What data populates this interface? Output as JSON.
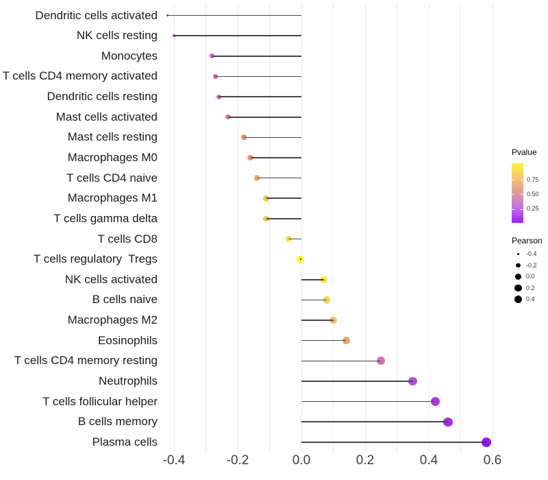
{
  "chart_data": {
    "type": "lollipop",
    "title": "",
    "xlabel": "",
    "ylabel": "",
    "x_range": [
      -0.435,
      0.625
    ],
    "x_tick_values": [
      -0.4,
      -0.2,
      0.0,
      0.2,
      0.4,
      0.6
    ],
    "x_tick_labels": [
      "-0.4",
      "-0.2",
      "0.0",
      "0.2",
      "0.4",
      "0.6"
    ],
    "grid_values": [
      -0.4,
      -0.3,
      -0.2,
      -0.1,
      0.0,
      0.1,
      0.2,
      0.3,
      0.4,
      0.5,
      0.6
    ],
    "rows": [
      {
        "label": "Dendritic cells activated",
        "pearson": -0.42,
        "color": "#951adf"
      },
      {
        "label": "NK cells resting",
        "pearson": -0.4,
        "color": "#a62ce2"
      },
      {
        "label": "Monocytes",
        "pearson": -0.28,
        "color": "#cb66b3"
      },
      {
        "label": "T cells CD4 memory activated",
        "pearson": -0.27,
        "color": "#cd69b1"
      },
      {
        "label": "Dendritic cells resting",
        "pearson": -0.26,
        "color": "#cf6cae"
      },
      {
        "label": "Mast cells activated",
        "pearson": -0.23,
        "color": "#d77a9f"
      },
      {
        "label": "Mast cells resting",
        "pearson": -0.18,
        "color": "#e08f75"
      },
      {
        "label": "Macrophages M0",
        "pearson": -0.16,
        "color": "#e59a6d"
      },
      {
        "label": "T cells CD4 naive",
        "pearson": -0.14,
        "color": "#ebad68"
      },
      {
        "label": "Macrophages M1",
        "pearson": -0.11,
        "color": "#f1c65e"
      },
      {
        "label": "T cells gamma delta",
        "pearson": -0.11,
        "color": "#f1c85d"
      },
      {
        "label": "T cells CD8",
        "pearson": -0.04,
        "color": "#f7e04a"
      },
      {
        "label": "T cells regulatory  Tregs",
        "pearson": -0.005,
        "color": "#fdf834"
      },
      {
        "label": "NK cells activated",
        "pearson": 0.07,
        "color": "#f6e04b"
      },
      {
        "label": "B cells naive",
        "pearson": 0.08,
        "color": "#f0d155"
      },
      {
        "label": "Macrophages M2",
        "pearson": 0.1,
        "color": "#edc266"
      },
      {
        "label": "Eosinophils",
        "pearson": 0.14,
        "color": "#e2a379"
      },
      {
        "label": "T cells CD4 memory resting",
        "pearson": 0.25,
        "color": "#d073a8"
      },
      {
        "label": "Neutrophils",
        "pearson": 0.35,
        "color": "#bb4cd4"
      },
      {
        "label": "T cells follicular helper",
        "pearson": 0.42,
        "color": "#ad36e0"
      },
      {
        "label": "B cells memory",
        "pearson": 0.46,
        "color": "#a62ce5"
      },
      {
        "label": "Plasma cells",
        "pearson": 0.58,
        "color": "#9316f2"
      }
    ],
    "legend": {
      "position": "right",
      "pvalue": {
        "title": "Pvalue",
        "tick_labels": [
          "0.75",
          "0.50",
          "0.25"
        ],
        "tick_positions": [
          0.28,
          0.52,
          0.77
        ],
        "gradient_top_to_bottom": [
          "#fdf33b",
          "#f6c36c",
          "#df9b9b",
          "#c26fe4",
          "#a21ef5"
        ]
      },
      "pearson": {
        "title": "Pearson",
        "entries": [
          {
            "label": "-0.4",
            "diameter": 3.4
          },
          {
            "label": "-0.2",
            "diameter": 6.6
          },
          {
            "label": "0.0",
            "diameter": 9.0
          },
          {
            "label": "0.2",
            "diameter": 10.4
          },
          {
            "label": "0.4",
            "diameter": 11.6
          }
        ]
      }
    },
    "colors": {
      "stem": "#454545",
      "grid": "#eaeaea",
      "axis_text": "#3d3d3d",
      "label_text": "#1a1a1a",
      "legend_dot": "#000000",
      "background": "#ffffff"
    },
    "grid": true
  }
}
